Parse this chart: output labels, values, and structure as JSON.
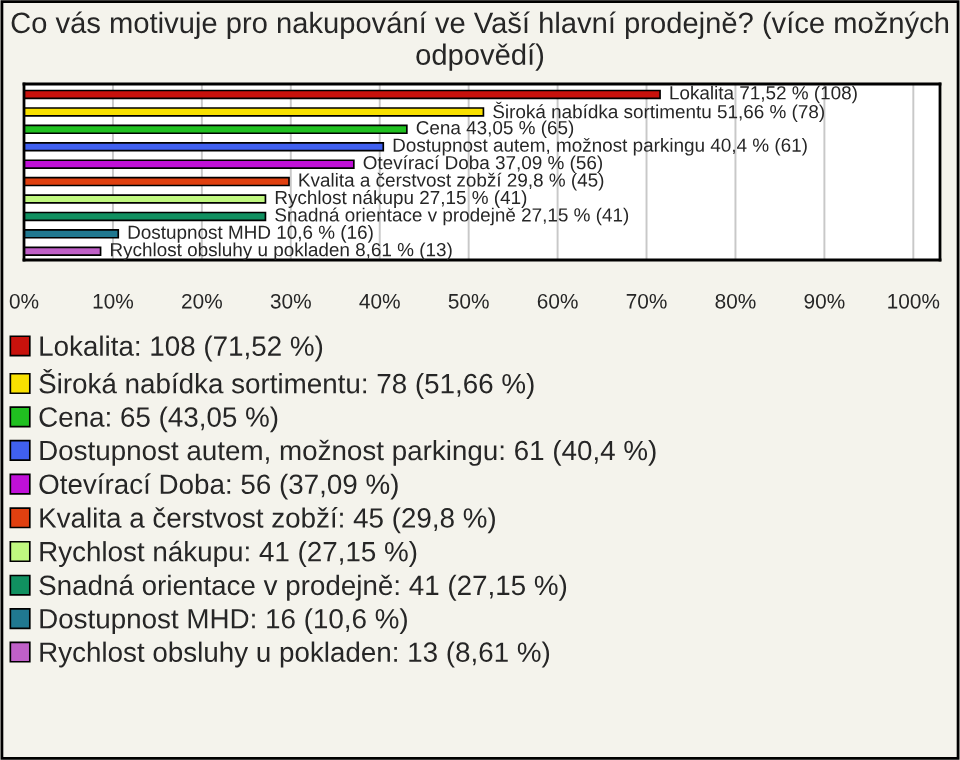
{
  "chart_data": {
    "type": "bar",
    "orientation": "horizontal",
    "title": "Co vás motivuje pro nakupování ve Vaší hlavní prodejně? (více možných odpovědí)",
    "categories": [
      null,
      null,
      null,
      null,
      null,
      null,
      null,
      null,
      null,
      null
    ],
    "series": [
      {
        "name": "Lokalita: 108 (71,52 %)",
        "color": "#c8120c",
        "values": [
          71.52,
          null,
          null,
          null,
          null,
          null,
          null,
          null,
          null,
          null
        ],
        "value_labels": [
          "Lokalita 71,52 % (108)",
          null,
          null,
          null,
          null,
          null,
          null,
          null,
          null,
          null
        ]
      },
      {
        "name": "Široká nabídka sortimentu: 78 (51,66 %)",
        "color": "#f8e000",
        "values": [
          null,
          51.66,
          null,
          null,
          null,
          null,
          null,
          null,
          null,
          null
        ],
        "value_labels": [
          null,
          "Široká nabídka sortimentu 51,66 % (78)",
          null,
          null,
          null,
          null,
          null,
          null,
          null,
          null
        ]
      },
      {
        "name": "Cena: 65 (43,05 %)",
        "color": "#20c020",
        "values": [
          null,
          null,
          43.05,
          null,
          null,
          null,
          null,
          null,
          null,
          null
        ],
        "value_labels": [
          null,
          null,
          "Cena 43,05 % (65)",
          null,
          null,
          null,
          null,
          null,
          null,
          null
        ]
      },
      {
        "name": "Dostupnost autem, možnost parkingu: 61 (40,4 %)",
        "color": "#4060f0",
        "values": [
          null,
          null,
          null,
          40.4,
          null,
          null,
          null,
          null,
          null,
          null
        ],
        "value_labels": [
          null,
          null,
          null,
          "Dostupnost autem, možnost parkingu 40,4 % (61)",
          null,
          null,
          null,
          null,
          null,
          null
        ]
      },
      {
        "name": "Otevírací Doba: 56 (37,09 %)",
        "color": "#c010d8",
        "values": [
          null,
          null,
          null,
          null,
          37.09,
          null,
          null,
          null,
          null,
          null
        ],
        "value_labels": [
          null,
          null,
          null,
          null,
          "Otevírací Doba 37,09 % (56)",
          null,
          null,
          null,
          null,
          null
        ]
      },
      {
        "name": "Kvalita a čerstvost zobží: 45 (29,8 %)",
        "color": "#e04010",
        "values": [
          null,
          null,
          null,
          null,
          null,
          29.8,
          null,
          null,
          null,
          null
        ],
        "value_labels": [
          null,
          null,
          null,
          null,
          null,
          "Kvalita a čerstvost zobží 29,8 % (45)",
          null,
          null,
          null,
          null
        ]
      },
      {
        "name": "Rychlost nákupu: 41 (27,15 %)",
        "color": "#c0f880",
        "values": [
          null,
          null,
          null,
          null,
          null,
          null,
          27.15,
          null,
          null,
          null
        ],
        "value_labels": [
          null,
          null,
          null,
          null,
          null,
          null,
          "Rychlost nákupu 27,15 % (41)",
          null,
          null,
          null
        ]
      },
      {
        "name": "Snadná orientace v prodejně: 41 (27,15 %)",
        "color": "#109060",
        "values": [
          null,
          null,
          null,
          null,
          null,
          null,
          null,
          27.15,
          null,
          null
        ],
        "value_labels": [
          null,
          null,
          null,
          null,
          null,
          null,
          null,
          "Snadná orientace v prodejně 27,15 % (41)",
          null,
          null
        ]
      },
      {
        "name": "Dostupnost MHD: 16 (10,6 %)",
        "color": "#207890",
        "values": [
          null,
          null,
          null,
          null,
          null,
          null,
          null,
          null,
          10.6,
          null
        ],
        "value_labels": [
          null,
          null,
          null,
          null,
          null,
          null,
          null,
          null,
          "Dostupnost MHD 10,6 % (16)",
          null
        ]
      },
      {
        "name": "Rychlost obsluhy u pokladen: 13 (8,61 %)",
        "color": "#c060c8",
        "values": [
          null,
          null,
          null,
          null,
          null,
          null,
          null,
          null,
          null,
          8.61
        ],
        "value_labels": [
          null,
          null,
          null,
          null,
          null,
          null,
          null,
          null,
          null,
          "Rychlost obsluhy u pokladen 8,61 % (13)"
        ]
      }
    ],
    "xlim": [
      0,
      103
    ],
    "xticks": [
      {
        "value": 0,
        "label": "0%"
      },
      {
        "value": 10,
        "label": "10%"
      },
      {
        "value": 20,
        "label": "20%"
      },
      {
        "value": 30,
        "label": "30%"
      },
      {
        "value": 40,
        "label": "40%"
      },
      {
        "value": 50,
        "label": "50%"
      },
      {
        "value": 60,
        "label": "60%"
      },
      {
        "value": 70,
        "label": "70%"
      },
      {
        "value": 80,
        "label": "80%"
      },
      {
        "value": 90,
        "label": "90%"
      },
      {
        "value": 100,
        "label": "100%"
      }
    ],
    "grid": "x",
    "legend": "bottom",
    "tick_labels": "x"
  }
}
